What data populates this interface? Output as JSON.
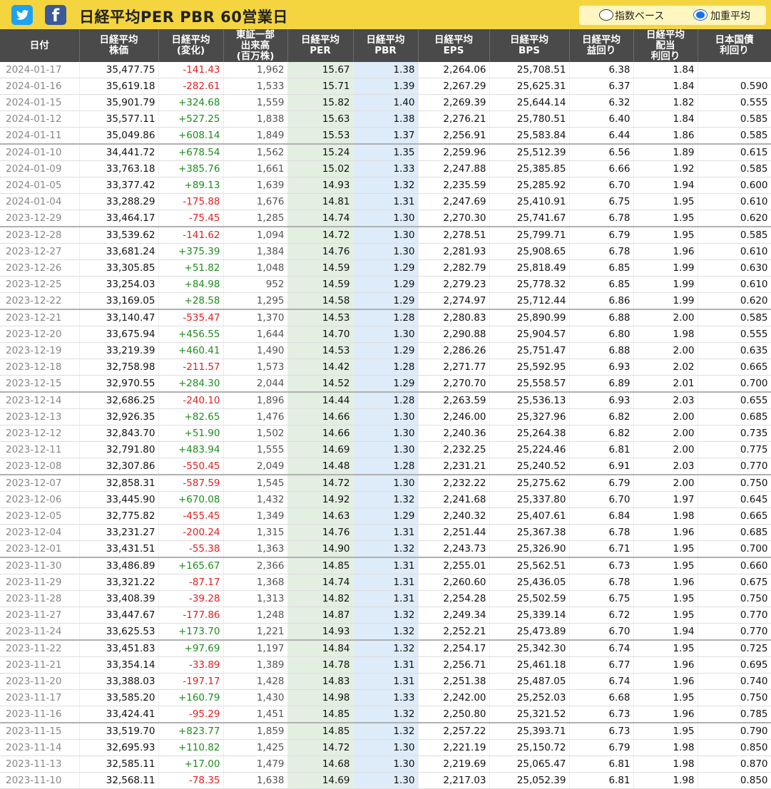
{
  "header": {
    "title": "日経平均PER PBR 60営業日",
    "twitter_icon": "twitter-icon",
    "facebook_icon": "facebook-icon",
    "facebook_glyph": "f",
    "radio_index_label": "指数ベース",
    "radio_weighted_label": "加重平均",
    "selected": "加重平均"
  },
  "colors": {
    "header_bar": "#f5d53f",
    "table_header": "#4a4a4a",
    "positive": "#1e8c1e",
    "negative": "#e02020",
    "per_col": "#e3efe1",
    "pbr_col": "#deebf8"
  },
  "table": {
    "columns": [
      [
        "日付"
      ],
      [
        "日経平均",
        "株価"
      ],
      [
        "日経平均",
        "(変化)"
      ],
      [
        "東証一部",
        "出来高",
        "(百万株)"
      ],
      [
        "日経平均",
        "PER"
      ],
      [
        "日経平均",
        "PBR"
      ],
      [
        "日経平均",
        "EPS"
      ],
      [
        "日経平均",
        "BPS"
      ],
      [
        "日経平均",
        "益回り"
      ],
      [
        "日経平均",
        "配当",
        "利回り"
      ],
      [
        "日本国債",
        "利回り"
      ]
    ],
    "rows": [
      [
        "2024-01-17",
        "35,477.75",
        "-141.43",
        "1,962",
        "15.67",
        "1.38",
        "2,264.06",
        "25,708.51",
        "6.38",
        "1.84",
        ""
      ],
      [
        "2024-01-16",
        "35,619.18",
        "-282.61",
        "1,533",
        "15.71",
        "1.39",
        "2,267.29",
        "25,625.31",
        "6.37",
        "1.84",
        "0.590"
      ],
      [
        "2024-01-15",
        "35,901.79",
        "+324.68",
        "1,559",
        "15.82",
        "1.40",
        "2,269.39",
        "25,644.14",
        "6.32",
        "1.82",
        "0.555"
      ],
      [
        "2024-01-12",
        "35,577.11",
        "+527.25",
        "1,838",
        "15.63",
        "1.38",
        "2,276.21",
        "25,780.51",
        "6.40",
        "1.84",
        "0.585"
      ],
      [
        "2024-01-11",
        "35,049.86",
        "+608.14",
        "1,849",
        "15.53",
        "1.37",
        "2,256.91",
        "25,583.84",
        "6.44",
        "1.86",
        "0.585"
      ],
      [
        "2024-01-10",
        "34,441.72",
        "+678.54",
        "1,562",
        "15.24",
        "1.35",
        "2,259.96",
        "25,512.39",
        "6.56",
        "1.89",
        "0.615"
      ],
      [
        "2024-01-09",
        "33,763.18",
        "+385.76",
        "1,661",
        "15.02",
        "1.33",
        "2,247.88",
        "25,385.85",
        "6.66",
        "1.92",
        "0.585"
      ],
      [
        "2024-01-05",
        "33,377.42",
        "+89.13",
        "1,639",
        "14.93",
        "1.32",
        "2,235.59",
        "25,285.92",
        "6.70",
        "1.94",
        "0.600"
      ],
      [
        "2024-01-04",
        "33,288.29",
        "-175.88",
        "1,676",
        "14.81",
        "1.31",
        "2,247.69",
        "25,410.91",
        "6.75",
        "1.95",
        "0.610"
      ],
      [
        "2023-12-29",
        "33,464.17",
        "-75.45",
        "1,285",
        "14.74",
        "1.30",
        "2,270.30",
        "25,741.67",
        "6.78",
        "1.95",
        "0.620"
      ],
      [
        "2023-12-28",
        "33,539.62",
        "-141.62",
        "1,094",
        "14.72",
        "1.30",
        "2,278.51",
        "25,799.71",
        "6.79",
        "1.95",
        "0.585"
      ],
      [
        "2023-12-27",
        "33,681.24",
        "+375.39",
        "1,384",
        "14.76",
        "1.30",
        "2,281.93",
        "25,908.65",
        "6.78",
        "1.96",
        "0.610"
      ],
      [
        "2023-12-26",
        "33,305.85",
        "+51.82",
        "1,048",
        "14.59",
        "1.29",
        "2,282.79",
        "25,818.49",
        "6.85",
        "1.99",
        "0.630"
      ],
      [
        "2023-12-25",
        "33,254.03",
        "+84.98",
        "952",
        "14.59",
        "1.29",
        "2,279.23",
        "25,778.32",
        "6.85",
        "1.99",
        "0.610"
      ],
      [
        "2023-12-22",
        "33,169.05",
        "+28.58",
        "1,295",
        "14.58",
        "1.29",
        "2,274.97",
        "25,712.44",
        "6.86",
        "1.99",
        "0.620"
      ],
      [
        "2023-12-21",
        "33,140.47",
        "-535.47",
        "1,370",
        "14.53",
        "1.28",
        "2,280.83",
        "25,890.99",
        "6.88",
        "2.00",
        "0.585"
      ],
      [
        "2023-12-20",
        "33,675.94",
        "+456.55",
        "1,644",
        "14.70",
        "1.30",
        "2,290.88",
        "25,904.57",
        "6.80",
        "1.98",
        "0.555"
      ],
      [
        "2023-12-19",
        "33,219.39",
        "+460.41",
        "1,490",
        "14.53",
        "1.29",
        "2,286.26",
        "25,751.47",
        "6.88",
        "2.00",
        "0.635"
      ],
      [
        "2023-12-18",
        "32,758.98",
        "-211.57",
        "1,573",
        "14.42",
        "1.28",
        "2,271.77",
        "25,592.95",
        "6.93",
        "2.02",
        "0.665"
      ],
      [
        "2023-12-15",
        "32,970.55",
        "+284.30",
        "2,044",
        "14.52",
        "1.29",
        "2,270.70",
        "25,558.57",
        "6.89",
        "2.01",
        "0.700"
      ],
      [
        "2023-12-14",
        "32,686.25",
        "-240.10",
        "1,896",
        "14.44",
        "1.28",
        "2,263.59",
        "25,536.13",
        "6.93",
        "2.03",
        "0.655"
      ],
      [
        "2023-12-13",
        "32,926.35",
        "+82.65",
        "1,476",
        "14.66",
        "1.30",
        "2,246.00",
        "25,327.96",
        "6.82",
        "2.00",
        "0.685"
      ],
      [
        "2023-12-12",
        "32,843.70",
        "+51.90",
        "1,502",
        "14.66",
        "1.30",
        "2,240.36",
        "25,264.38",
        "6.82",
        "2.00",
        "0.735"
      ],
      [
        "2023-12-11",
        "32,791.80",
        "+483.94",
        "1,555",
        "14.69",
        "1.30",
        "2,232.25",
        "25,224.46",
        "6.81",
        "2.00",
        "0.775"
      ],
      [
        "2023-12-08",
        "32,307.86",
        "-550.45",
        "2,049",
        "14.48",
        "1.28",
        "2,231.21",
        "25,240.52",
        "6.91",
        "2.03",
        "0.770"
      ],
      [
        "2023-12-07",
        "32,858.31",
        "-587.59",
        "1,545",
        "14.72",
        "1.30",
        "2,232.22",
        "25,275.62",
        "6.79",
        "2.00",
        "0.750"
      ],
      [
        "2023-12-06",
        "33,445.90",
        "+670.08",
        "1,432",
        "14.92",
        "1.32",
        "2,241.68",
        "25,337.80",
        "6.70",
        "1.97",
        "0.645"
      ],
      [
        "2023-12-05",
        "32,775.82",
        "-455.45",
        "1,349",
        "14.63",
        "1.29",
        "2,240.32",
        "25,407.61",
        "6.84",
        "1.98",
        "0.665"
      ],
      [
        "2023-12-04",
        "33,231.27",
        "-200.24",
        "1,315",
        "14.76",
        "1.31",
        "2,251.44",
        "25,367.38",
        "6.78",
        "1.96",
        "0.685"
      ],
      [
        "2023-12-01",
        "33,431.51",
        "-55.38",
        "1,363",
        "14.90",
        "1.32",
        "2,243.73",
        "25,326.90",
        "6.71",
        "1.95",
        "0.700"
      ],
      [
        "2023-11-30",
        "33,486.89",
        "+165.67",
        "2,366",
        "14.85",
        "1.31",
        "2,255.01",
        "25,562.51",
        "6.73",
        "1.95",
        "0.660"
      ],
      [
        "2023-11-29",
        "33,321.22",
        "-87.17",
        "1,368",
        "14.74",
        "1.31",
        "2,260.60",
        "25,436.05",
        "6.78",
        "1.96",
        "0.675"
      ],
      [
        "2023-11-28",
        "33,408.39",
        "-39.28",
        "1,313",
        "14.82",
        "1.31",
        "2,254.28",
        "25,502.59",
        "6.75",
        "1.95",
        "0.750"
      ],
      [
        "2023-11-27",
        "33,447.67",
        "-177.86",
        "1,248",
        "14.87",
        "1.32",
        "2,249.34",
        "25,339.14",
        "6.72",
        "1.95",
        "0.770"
      ],
      [
        "2023-11-24",
        "33,625.53",
        "+173.70",
        "1,221",
        "14.93",
        "1.32",
        "2,252.21",
        "25,473.89",
        "6.70",
        "1.94",
        "0.770"
      ],
      [
        "2023-11-22",
        "33,451.83",
        "+97.69",
        "1,197",
        "14.84",
        "1.32",
        "2,254.17",
        "25,342.30",
        "6.74",
        "1.95",
        "0.725"
      ],
      [
        "2023-11-21",
        "33,354.14",
        "-33.89",
        "1,389",
        "14.78",
        "1.31",
        "2,256.71",
        "25,461.18",
        "6.77",
        "1.96",
        "0.695"
      ],
      [
        "2023-11-20",
        "33,388.03",
        "-197.17",
        "1,428",
        "14.83",
        "1.31",
        "2,251.38",
        "25,487.05",
        "6.74",
        "1.96",
        "0.740"
      ],
      [
        "2023-11-17",
        "33,585.20",
        "+160.79",
        "1,430",
        "14.98",
        "1.33",
        "2,242.00",
        "25,252.03",
        "6.68",
        "1.95",
        "0.750"
      ],
      [
        "2023-11-16",
        "33,424.41",
        "-95.29",
        "1,451",
        "14.85",
        "1.32",
        "2,250.80",
        "25,321.52",
        "6.73",
        "1.96",
        "0.785"
      ],
      [
        "2023-11-15",
        "33,519.70",
        "+823.77",
        "1,859",
        "14.85",
        "1.32",
        "2,257.22",
        "25,393.71",
        "6.73",
        "1.95",
        "0.790"
      ],
      [
        "2023-11-14",
        "32,695.93",
        "+110.82",
        "1,425",
        "14.72",
        "1.30",
        "2,221.19",
        "25,150.72",
        "6.79",
        "1.98",
        "0.850"
      ],
      [
        "2023-11-13",
        "32,585.11",
        "+17.00",
        "1,479",
        "14.68",
        "1.30",
        "2,219.69",
        "25,065.47",
        "6.81",
        "1.98",
        "0.870"
      ],
      [
        "2023-11-10",
        "32,568.11",
        "-78.35",
        "1,638",
        "14.69",
        "1.30",
        "2,217.03",
        "25,052.39",
        "6.81",
        "1.98",
        "0.850"
      ]
    ]
  }
}
